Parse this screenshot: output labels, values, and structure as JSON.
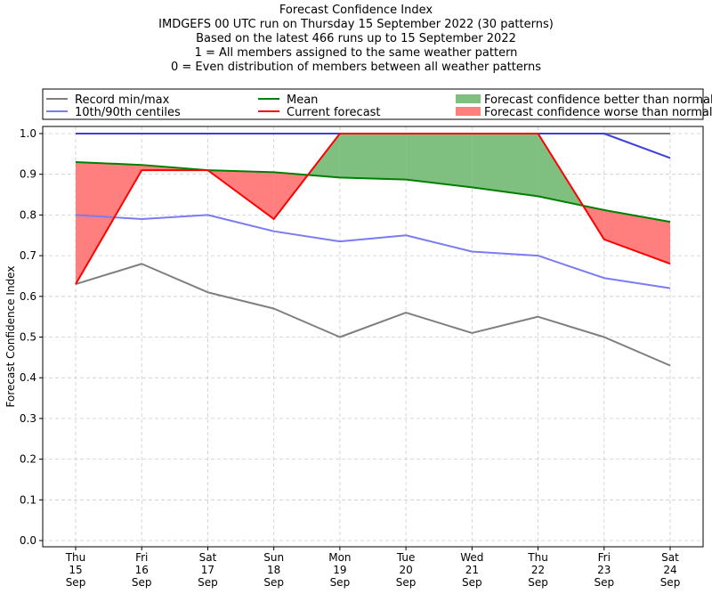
{
  "chart_data": {
    "type": "line",
    "title_lines": [
      "Forecast Confidence Index",
      "IMDGEFS 00 UTC run on Thursday 15 September 2022 (30 patterns)",
      "Based on the latest 466 runs up to 15 September 2022",
      "1 = All members assigned to the same weather pattern",
      "0 = Even distribution of members between all weather patterns"
    ],
    "ylabel": "Forecast Confidence Index",
    "ylim": [
      0,
      1.0
    ],
    "yticks": [
      "0.0",
      "0.1",
      "0.2",
      "0.3",
      "0.4",
      "0.5",
      "0.6",
      "0.7",
      "0.8",
      "0.9",
      "1.0"
    ],
    "grid": true,
    "legend_position": "top, above plot",
    "categories": [
      [
        "Thu",
        "15",
        "Sep"
      ],
      [
        "Fri",
        "16",
        "Sep"
      ],
      [
        "Sat",
        "17",
        "Sep"
      ],
      [
        "Sun",
        "18",
        "Sep"
      ],
      [
        "Mon",
        "19",
        "Sep"
      ],
      [
        "Tue",
        "20",
        "Sep"
      ],
      [
        "Wed",
        "21",
        "Sep"
      ],
      [
        "Thu",
        "22",
        "Sep"
      ],
      [
        "Fri",
        "23",
        "Sep"
      ],
      [
        "Sat",
        "24",
        "Sep"
      ]
    ],
    "series": [
      {
        "name": "Record min/max",
        "role": "record_min",
        "color": "#7f7f7f",
        "values": [
          0.63,
          0.68,
          0.61,
          0.57,
          0.5,
          0.56,
          0.51,
          0.55,
          0.5,
          0.43
        ]
      },
      {
        "role": "record_max",
        "color": "#7f7f7f",
        "values": [
          1.0,
          1.0,
          1.0,
          1.0,
          1.0,
          1.0,
          1.0,
          1.0,
          1.0,
          1.0
        ]
      },
      {
        "name": "10th/90th centiles",
        "role": "p10",
        "color": "#7b7bf5",
        "values": [
          0.8,
          0.79,
          0.8,
          0.76,
          0.735,
          0.75,
          0.71,
          0.7,
          0.645,
          0.62
        ]
      },
      {
        "role": "p90",
        "color": "#3f3fe0",
        "values": [
          1.0,
          1.0,
          1.0,
          1.0,
          1.0,
          1.0,
          1.0,
          1.0,
          1.0,
          0.94
        ]
      },
      {
        "name": "Mean",
        "role": "mean",
        "color": "#008000",
        "values": [
          0.93,
          0.923,
          0.91,
          0.905,
          0.892,
          0.887,
          0.868,
          0.846,
          0.812,
          0.783
        ]
      },
      {
        "name": "Current forecast",
        "role": "forecast",
        "color": "#ff0000",
        "values": [
          0.63,
          0.91,
          0.91,
          0.79,
          1.0,
          1.0,
          1.0,
          1.0,
          0.74,
          0.68
        ]
      }
    ],
    "fills": [
      {
        "name": "Forecast confidence better than normal",
        "color": "#7fbf7f"
      },
      {
        "name": "Forecast confidence worse than normal",
        "color": "#ff7f7f"
      }
    ]
  }
}
